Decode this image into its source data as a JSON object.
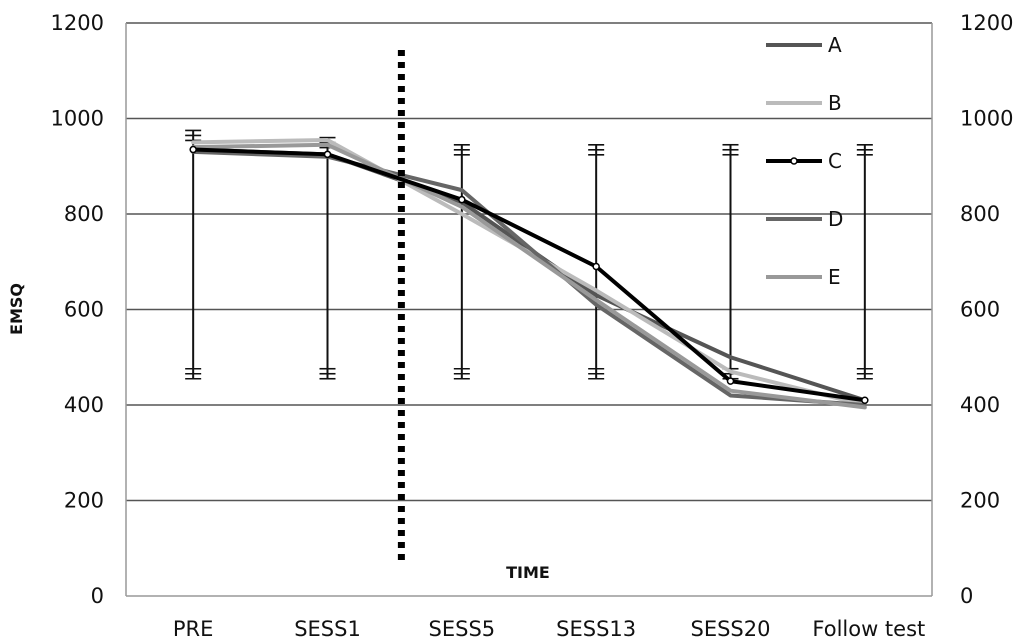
{
  "chart_data": {
    "type": "line",
    "xlabel": "TIME",
    "ylabel": "EMSQ",
    "categories": [
      "PRE",
      "SESS1",
      "SESS5",
      "SESS13",
      "SESS20",
      "Follow test"
    ],
    "ylim": [
      0,
      1200
    ],
    "yticks": [
      0,
      200,
      400,
      600,
      800,
      1000,
      1200
    ],
    "y2ticks": [
      0,
      200,
      400,
      600,
      800,
      1000,
      1200
    ],
    "grid": true,
    "legend_position": "top-right",
    "vertical_marker": {
      "style": "dotted",
      "between": [
        "SESS1",
        "SESS5"
      ],
      "x_index": 1.55
    },
    "series": [
      {
        "name": "A",
        "color": "#555555",
        "width": 4,
        "marker": false,
        "values": [
          935,
          925,
          825,
          630,
          500,
          410
        ]
      },
      {
        "name": "B",
        "color": "#bbbbbb",
        "width": 4,
        "marker": false,
        "values": [
          950,
          955,
          800,
          640,
          470,
          400
        ]
      },
      {
        "name": "C",
        "color": "#000000",
        "width": 4,
        "marker": true,
        "values": [
          935,
          925,
          830,
          690,
          450,
          410
        ]
      },
      {
        "name": "D",
        "color": "#666666",
        "width": 4,
        "marker": false,
        "values": [
          930,
          920,
          850,
          610,
          420,
          400
        ]
      },
      {
        "name": "E",
        "color": "#999999",
        "width": 4,
        "marker": false,
        "values": [
          940,
          945,
          815,
          620,
          430,
          395
        ]
      }
    ],
    "error_bars": [
      {
        "category": "PRE",
        "lower": 455,
        "upper": 975
      },
      {
        "category": "SESS1",
        "lower": 455,
        "upper": 960
      },
      {
        "category": "SESS5",
        "lower": 455,
        "upper": 945
      },
      {
        "category": "SESS13",
        "lower": 455,
        "upper": 945
      },
      {
        "category": "SESS20",
        "lower": 455,
        "upper": 945
      },
      {
        "category": "Follow test",
        "lower": 455,
        "upper": 945
      }
    ]
  }
}
